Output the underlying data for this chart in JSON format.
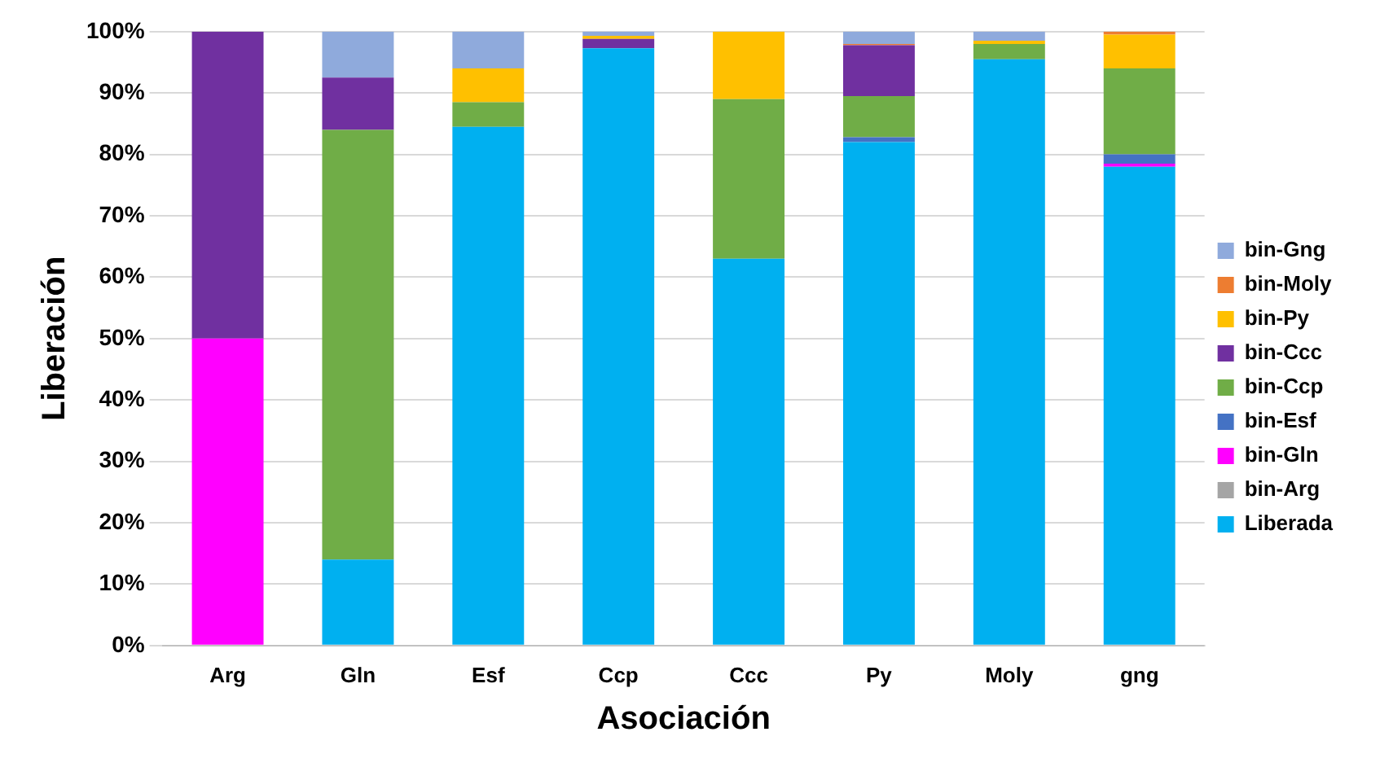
{
  "chart_data": {
    "type": "bar",
    "stacked": true,
    "xlabel": "Asociación",
    "ylabel": "Liberación",
    "categories": [
      "Arg",
      "Gln",
      "Esf",
      "Ccp",
      "Ccc",
      "Py",
      "Moly",
      "gng"
    ],
    "ylim": [
      0,
      100
    ],
    "yticks": [
      {
        "value": 0,
        "label": "0%"
      },
      {
        "value": 10,
        "label": "10%"
      },
      {
        "value": 20,
        "label": "20%"
      },
      {
        "value": 30,
        "label": "30%"
      },
      {
        "value": 40,
        "label": "40%"
      },
      {
        "value": 50,
        "label": "50%"
      },
      {
        "value": 60,
        "label": "60%"
      },
      {
        "value": 70,
        "label": "70%"
      },
      {
        "value": 80,
        "label": "80%"
      },
      {
        "value": 90,
        "label": "90%"
      },
      {
        "value": 100,
        "label": "100%"
      }
    ],
    "grid": "y",
    "legend": "right",
    "series": [
      {
        "name": "Liberada",
        "color": "#00b0f0",
        "values": [
          0,
          14,
          84.5,
          97.3,
          63,
          82,
          95.5,
          78
        ]
      },
      {
        "name": "bin-Arg",
        "color": "#a5a5a5",
        "values": [
          0,
          0,
          0,
          0,
          0,
          0,
          0,
          0
        ]
      },
      {
        "name": "bin-Gln",
        "color": "#ff00ff",
        "values": [
          50,
          0,
          0,
          0,
          0,
          0,
          0,
          0.5
        ]
      },
      {
        "name": "bin-Esf",
        "color": "#4472c4",
        "values": [
          0,
          0,
          0,
          0,
          0,
          0.8,
          0,
          1.5
        ]
      },
      {
        "name": "bin-Ccp",
        "color": "#70ad47",
        "values": [
          0,
          70,
          4,
          0,
          26,
          6.7,
          2.5,
          14
        ]
      },
      {
        "name": "bin-Ccc",
        "color": "#7030a0",
        "values": [
          50,
          8.5,
          0,
          1.5,
          0,
          8.3,
          0,
          0
        ]
      },
      {
        "name": "bin-Py",
        "color": "#ffc000",
        "values": [
          0,
          0,
          5.5,
          0.5,
          11,
          0,
          0.5,
          5.5
        ]
      },
      {
        "name": "bin-Moly",
        "color": "#ed7d31",
        "values": [
          0,
          0,
          0,
          0,
          0,
          0.2,
          0,
          0.5
        ]
      },
      {
        "name": "bin-Gng",
        "color": "#8faadc",
        "values": [
          0,
          7.5,
          6,
          0.7,
          0,
          2,
          1.5,
          0
        ]
      }
    ]
  }
}
